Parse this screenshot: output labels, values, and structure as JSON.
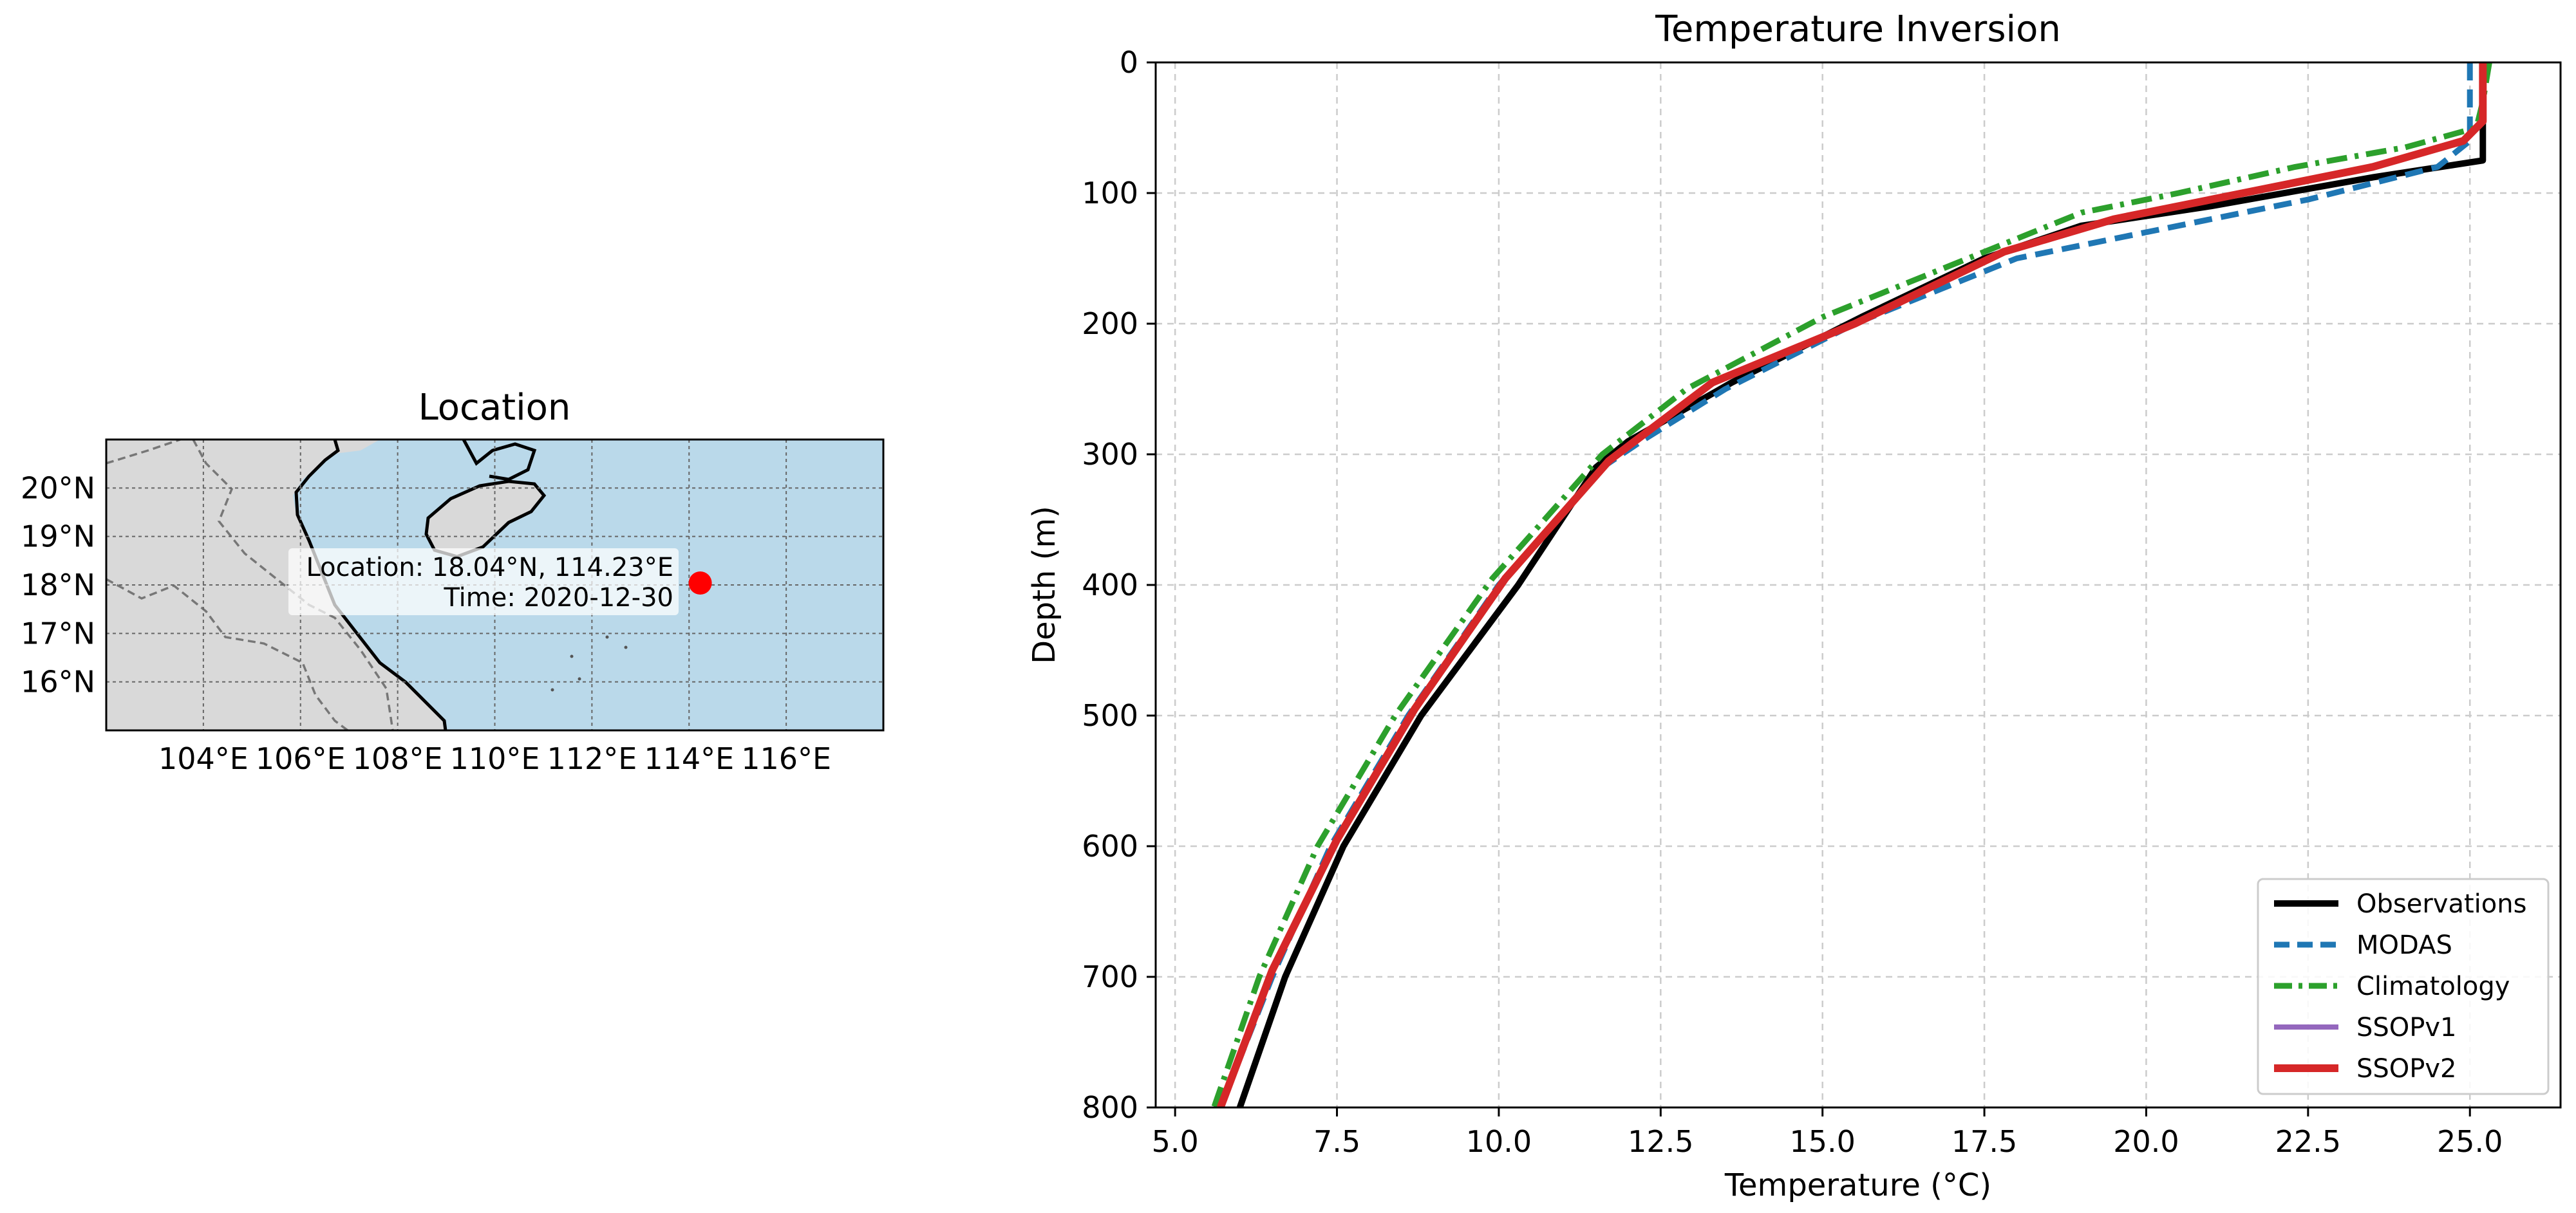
{
  "map": {
    "title": "Location",
    "lat_ticks": [
      "20°N",
      "19°N",
      "18°N",
      "17°N",
      "16°N"
    ],
    "lat_values": [
      20,
      19,
      18,
      17,
      16
    ],
    "lon_ticks": [
      "104°E",
      "106°E",
      "108°E",
      "110°E",
      "112°E",
      "114°E",
      "116°E"
    ],
    "lon_values": [
      104,
      106,
      108,
      110,
      112,
      114,
      116
    ],
    "lon_range": [
      102,
      118
    ],
    "lat_range": [
      15,
      21
    ],
    "marker": {
      "lon": 114.23,
      "lat": 18.04,
      "color": "#ff0000"
    },
    "annotation_line1": "Location: 18.04°N, 114.23°E",
    "annotation_line2": "Time: 2020-12-30",
    "ocean_color": "#bad9ea",
    "land_color": "#d9d9d9"
  },
  "chart_data": {
    "type": "line",
    "title": "Temperature Inversion",
    "xlabel": "Temperature (°C)",
    "ylabel": "Depth (m)",
    "xlim": [
      4.7,
      26.4
    ],
    "ylim": [
      800,
      0
    ],
    "y_inverted": true,
    "xticks": [
      "5.0",
      "7.5",
      "10.0",
      "12.5",
      "15.0",
      "17.5",
      "20.0",
      "22.5",
      "25.0"
    ],
    "xtick_values": [
      5.0,
      7.5,
      10.0,
      12.5,
      15.0,
      17.5,
      20.0,
      22.5,
      25.0
    ],
    "yticks": [
      "0",
      "100",
      "200",
      "300",
      "400",
      "500",
      "600",
      "700",
      "800"
    ],
    "ytick_values": [
      0,
      100,
      200,
      300,
      400,
      500,
      600,
      700,
      800
    ],
    "grid": true,
    "legend_position": "lower-right",
    "series": [
      {
        "name": "Observations",
        "color": "#000000",
        "style": "solid",
        "points": [
          [
            25.2,
            0
          ],
          [
            25.2,
            75
          ],
          [
            23.5,
            88
          ],
          [
            21.0,
            110
          ],
          [
            19.0,
            125
          ],
          [
            17.5,
            150
          ],
          [
            15.6,
            195
          ],
          [
            13.6,
            245
          ],
          [
            12.0,
            290
          ],
          [
            11.5,
            310
          ],
          [
            10.3,
            400
          ],
          [
            8.8,
            500
          ],
          [
            7.6,
            600
          ],
          [
            6.7,
            700
          ],
          [
            6.0,
            800
          ]
        ]
      },
      {
        "name": "MODAS",
        "color": "#1f77b4",
        "style": "dashed",
        "points": [
          [
            25.0,
            0
          ],
          [
            25.0,
            60
          ],
          [
            24.5,
            80
          ],
          [
            22.5,
            105
          ],
          [
            20.0,
            130
          ],
          [
            18.0,
            150
          ],
          [
            15.5,
            200
          ],
          [
            13.5,
            250
          ],
          [
            12.2,
            290
          ],
          [
            11.6,
            310
          ],
          [
            10.0,
            400
          ],
          [
            8.6,
            500
          ],
          [
            7.4,
            600
          ],
          [
            6.5,
            700
          ],
          [
            5.7,
            800
          ]
        ]
      },
      {
        "name": "Climatology",
        "color": "#2ca02c",
        "style": "dashdot",
        "points": [
          [
            25.3,
            0
          ],
          [
            25.2,
            30
          ],
          [
            25.1,
            50
          ],
          [
            24.0,
            65
          ],
          [
            22.3,
            80
          ],
          [
            20.5,
            100
          ],
          [
            19.0,
            115
          ],
          [
            17.5,
            145
          ],
          [
            15.0,
            195
          ],
          [
            12.9,
            250
          ],
          [
            11.6,
            300
          ],
          [
            9.9,
            395
          ],
          [
            8.4,
            500
          ],
          [
            7.2,
            600
          ],
          [
            6.3,
            700
          ],
          [
            5.6,
            800
          ]
        ]
      },
      {
        "name": "SSOPv1",
        "color": "#9467bd",
        "style": "solid",
        "points": [
          [
            25.2,
            0
          ],
          [
            25.2,
            45
          ],
          [
            24.9,
            60
          ],
          [
            23.5,
            80
          ],
          [
            21.5,
            100
          ],
          [
            19.5,
            120
          ],
          [
            17.8,
            145
          ],
          [
            15.5,
            200
          ],
          [
            13.3,
            245
          ],
          [
            12.1,
            290
          ],
          [
            11.7,
            305
          ],
          [
            10.1,
            395
          ],
          [
            8.7,
            495
          ],
          [
            7.5,
            595
          ],
          [
            6.5,
            695
          ],
          [
            5.7,
            800
          ]
        ]
      },
      {
        "name": "SSOPv2",
        "color": "#d62728",
        "style": "solid",
        "points": [
          [
            25.2,
            0
          ],
          [
            25.2,
            45
          ],
          [
            24.9,
            60
          ],
          [
            23.5,
            80
          ],
          [
            21.5,
            100
          ],
          [
            19.5,
            120
          ],
          [
            17.8,
            145
          ],
          [
            15.5,
            200
          ],
          [
            13.3,
            245
          ],
          [
            12.1,
            290
          ],
          [
            11.7,
            305
          ],
          [
            10.1,
            395
          ],
          [
            8.7,
            495
          ],
          [
            7.5,
            595
          ],
          [
            6.5,
            695
          ],
          [
            5.7,
            800
          ]
        ]
      }
    ]
  }
}
